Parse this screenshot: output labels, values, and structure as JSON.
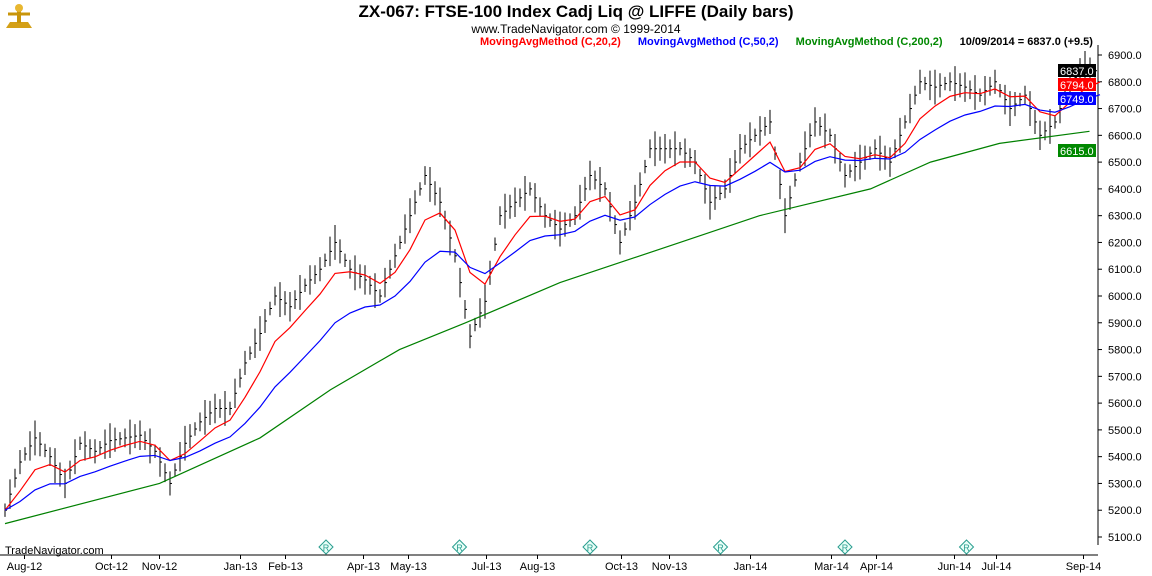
{
  "header": {
    "title": "ZX-067:  FTSE-100 Index Cadj Liq @ LIFFE  (Daily bars)",
    "subtitle": "www.TradeNavigator.com © 1999-2014",
    "last": "10/09/2014 = 6837.0 (+9.5)"
  },
  "footer": "TradeNavigator.com",
  "colors": {
    "price": "#000000",
    "ma20": "#ff0000",
    "ma50": "#0000ff",
    "ma200": "#008000"
  },
  "chart_data": {
    "type": "line",
    "title": "ZX-067:  FTSE-100 Index Cadj Liq @ LIFFE  (Daily bars)",
    "ylim": [
      5100,
      6900
    ],
    "yticks": [
      5100,
      5200,
      5300,
      5400,
      5500,
      5600,
      5700,
      5800,
      5900,
      6000,
      6100,
      6200,
      6300,
      6400,
      6500,
      6600,
      6700,
      6800,
      6900
    ],
    "xlabels": [
      {
        "pos": 1.3,
        "label": "Aug-12"
      },
      {
        "pos": 7.1,
        "label": "Oct-12"
      },
      {
        "pos": 10.3,
        "label": "Nov-12"
      },
      {
        "pos": 15.7,
        "label": "Jan-13"
      },
      {
        "pos": 18.7,
        "label": "Feb-13"
      },
      {
        "pos": 23.9,
        "label": "Apr-13"
      },
      {
        "pos": 26.9,
        "label": "May-13"
      },
      {
        "pos": 32.1,
        "label": "Jul-13"
      },
      {
        "pos": 35.5,
        "label": "Aug-13"
      },
      {
        "pos": 41.1,
        "label": "Oct-13"
      },
      {
        "pos": 44.3,
        "label": "Nov-13"
      },
      {
        "pos": 49.7,
        "label": "Jan-14"
      },
      {
        "pos": 55.1,
        "label": "Mar-14"
      },
      {
        "pos": 58.1,
        "label": "Apr-14"
      },
      {
        "pos": 63.3,
        "label": "Jun-14"
      },
      {
        "pos": 66.1,
        "label": "Jul-14"
      },
      {
        "pos": 71.9,
        "label": "Sep-14"
      }
    ],
    "rollover_markers": [
      21.4,
      30.3,
      39,
      47.7,
      56,
      64.1
    ],
    "closes": [
      5200,
      5380,
      5470,
      5400,
      5300,
      5450,
      5420,
      5460,
      5470,
      5480,
      5420,
      5300,
      5450,
      5530,
      5580,
      5580,
      5750,
      5860,
      6000,
      5960,
      6040,
      6100,
      6200,
      6100,
      6060,
      6000,
      6150,
      6300,
      6450,
      6350,
      6150,
      5850,
      5980,
      6300,
      6350,
      6400,
      6300,
      6250,
      6300,
      6450,
      6400,
      6200,
      6350,
      6550,
      6550,
      6550,
      6500,
      6350,
      6400,
      6550,
      6600,
      6650,
      6300,
      6500,
      6650,
      6600,
      6450,
      6500,
      6550,
      6500,
      6650,
      6800,
      6780,
      6800,
      6780,
      6750,
      6800,
      6700,
      6750,
      6600,
      6650,
      6800,
      6850,
      6837
    ],
    "ma200_keypoints": [
      [
        0,
        5150
      ],
      [
        10.3,
        5300
      ],
      [
        17,
        5470
      ],
      [
        21.7,
        5650
      ],
      [
        26.3,
        5800
      ],
      [
        30.7,
        5900
      ],
      [
        37,
        6050
      ],
      [
        45,
        6200
      ],
      [
        50.3,
        6300
      ],
      [
        57.7,
        6400
      ],
      [
        61.7,
        6500
      ],
      [
        66.3,
        6570
      ],
      [
        72.3,
        6615
      ]
    ],
    "series": [
      {
        "name": "MovingAvgMethod (C,20,2)",
        "last": "6794.0"
      },
      {
        "name": "MovingAvgMethod (C,50,2)",
        "last": "6749.0"
      },
      {
        "name": "MovingAvgMethod (C,200,2)",
        "last": "6615.0"
      }
    ],
    "last_close_label": "6837.0",
    "marker_glyph": "R"
  }
}
